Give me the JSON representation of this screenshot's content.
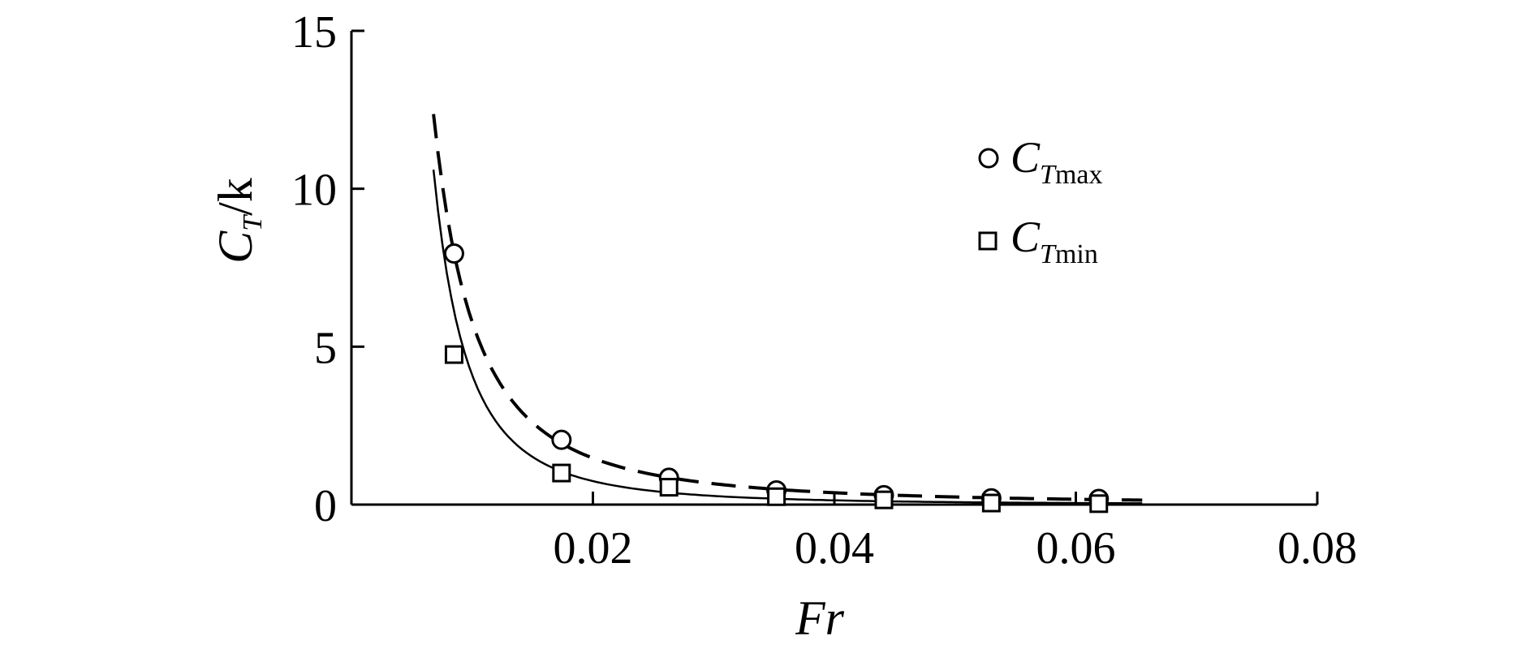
{
  "chart_data": {
    "type": "scatter",
    "xlabel": "Fr",
    "ylabel": {
      "main": "C",
      "sub": "T",
      "rest": "/k"
    },
    "xlim": [
      0,
      0.08
    ],
    "ylim": [
      0,
      15
    ],
    "x_ticks": [
      {
        "value": 0.02,
        "label": "0.02"
      },
      {
        "value": 0.04,
        "label": "0.04"
      },
      {
        "value": 0.06,
        "label": "0.06"
      },
      {
        "value": 0.08,
        "label": "0.08"
      }
    ],
    "y_ticks": [
      {
        "value": 0,
        "label": "0"
      },
      {
        "value": 5,
        "label": "5"
      },
      {
        "value": 10,
        "label": "10"
      },
      {
        "value": 15,
        "label": "15"
      }
    ],
    "legend_position": "top-right",
    "series": [
      {
        "name": {
          "main": "C",
          "sub_italic": "T",
          "sub": "max"
        },
        "marker": "circle",
        "x": [
          0.0085,
          0.0174,
          0.0263,
          0.0352,
          0.0441,
          0.053,
          0.0619
        ],
        "y": [
          7.95,
          2.05,
          0.85,
          0.45,
          0.3,
          0.2,
          0.18
        ],
        "fit": {
          "style": "dashed",
          "x_start": 0.0068,
          "x_end": 0.0655
        }
      },
      {
        "name": {
          "main": "C",
          "sub_italic": "T",
          "sub": "min"
        },
        "marker": "square",
        "x": [
          0.0085,
          0.0174,
          0.0263,
          0.0352,
          0.0441,
          0.053,
          0.0619
        ],
        "y": [
          4.75,
          1.0,
          0.55,
          0.25,
          0.15,
          0.05,
          0.03
        ],
        "fit": {
          "style": "solid",
          "x_start": 0.0068,
          "x_end": 0.0655
        }
      }
    ]
  }
}
